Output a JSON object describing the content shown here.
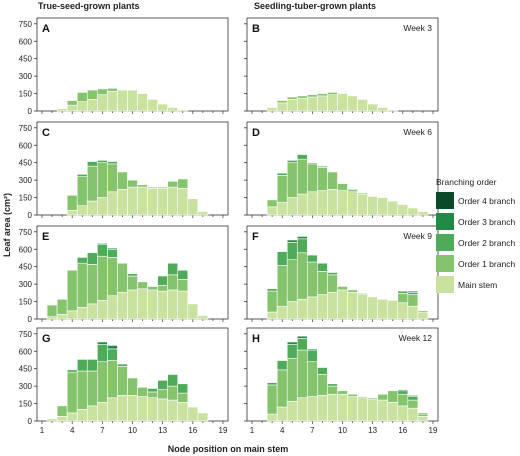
{
  "titles": {
    "left": "True-seed-grown plants",
    "right": "Seedling-tuber-grown plants"
  },
  "axes": {
    "ylabel": "Leaf area (cm²)",
    "xlabel": "Node position on main stem",
    "yticks": [
      "0",
      "150",
      "300",
      "450",
      "600",
      "750"
    ],
    "xticks": [
      "1",
      "4",
      "7",
      "10",
      "13",
      "16",
      "19"
    ]
  },
  "legend": {
    "title": "Branching order",
    "items": [
      {
        "label": "Order 4 branch",
        "color": "#0b4a28"
      },
      {
        "label": "Order 3 branch",
        "color": "#218a47"
      },
      {
        "label": "Order 2 branch",
        "color": "#4fab5a"
      },
      {
        "label": "Order 1 branch",
        "color": "#85c46d"
      },
      {
        "label": "Main stem",
        "color": "#c9e2a0"
      }
    ]
  },
  "chart_data": {
    "type": "bar",
    "stacked": true,
    "ylim": [
      0,
      800
    ],
    "xlim": [
      0.5,
      19.5
    ],
    "x": [
      1,
      2,
      3,
      4,
      5,
      6,
      7,
      8,
      9,
      10,
      11,
      12,
      13,
      14,
      15,
      16,
      17,
      18,
      19
    ],
    "series_names": [
      "Main stem",
      "Order 1 branch",
      "Order 2 branch",
      "Order 3 branch",
      "Order 4 branch"
    ],
    "panels": [
      {
        "label": "A",
        "week": "",
        "main": [
          0,
          0,
          20,
          50,
          80,
          100,
          140,
          170,
          180,
          180,
          150,
          100,
          60,
          30,
          10,
          0,
          0,
          0,
          0
        ],
        "o1": [
          0,
          0,
          0,
          40,
          80,
          80,
          50,
          25,
          0,
          0,
          0,
          0,
          0,
          0,
          0,
          0,
          0,
          0,
          0
        ],
        "o2": [
          0,
          0,
          0,
          0,
          0,
          0,
          0,
          0,
          0,
          0,
          0,
          0,
          0,
          0,
          0,
          0,
          0,
          0,
          0
        ],
        "o3": [
          0,
          0,
          0,
          0,
          0,
          0,
          0,
          0,
          0,
          0,
          0,
          0,
          0,
          0,
          0,
          0,
          0,
          0,
          0
        ],
        "o4": [
          0,
          0,
          0,
          0,
          0,
          0,
          0,
          0,
          0,
          0,
          0,
          0,
          0,
          0,
          0,
          0,
          0,
          0,
          0
        ]
      },
      {
        "label": "B",
        "week": "Week 3",
        "main": [
          0,
          0,
          30,
          70,
          100,
          110,
          120,
          130,
          140,
          150,
          130,
          100,
          60,
          30,
          10,
          0,
          0,
          0,
          0
        ],
        "o1": [
          0,
          0,
          0,
          20,
          20,
          20,
          20,
          20,
          20,
          0,
          0,
          0,
          0,
          0,
          0,
          0,
          0,
          0,
          0
        ],
        "o2": [
          0,
          0,
          0,
          0,
          0,
          0,
          0,
          0,
          0,
          0,
          0,
          0,
          0,
          0,
          0,
          0,
          0,
          0,
          0
        ],
        "o3": [
          0,
          0,
          0,
          0,
          0,
          0,
          0,
          0,
          0,
          0,
          0,
          0,
          0,
          0,
          0,
          0,
          0,
          0,
          0
        ],
        "o4": [
          0,
          0,
          0,
          0,
          0,
          0,
          0,
          0,
          0,
          0,
          0,
          0,
          0,
          0,
          0,
          0,
          0,
          0,
          0
        ]
      },
      {
        "label": "C",
        "week": "",
        "main": [
          0,
          0,
          0,
          40,
          80,
          120,
          150,
          200,
          220,
          240,
          240,
          230,
          230,
          240,
          230,
          140,
          30,
          0,
          0
        ],
        "o1": [
          0,
          0,
          0,
          130,
          250,
          300,
          300,
          240,
          150,
          60,
          20,
          10,
          10,
          50,
          80,
          0,
          0,
          0,
          0
        ],
        "o2": [
          0,
          0,
          0,
          0,
          20,
          40,
          20,
          20,
          0,
          0,
          0,
          0,
          0,
          0,
          0,
          0,
          0,
          0,
          0
        ],
        "o3": [
          0,
          0,
          0,
          0,
          0,
          0,
          0,
          0,
          0,
          0,
          0,
          0,
          0,
          0,
          0,
          0,
          0,
          0,
          0
        ],
        "o4": [
          0,
          0,
          0,
          0,
          0,
          0,
          0,
          0,
          0,
          0,
          0,
          0,
          0,
          0,
          0,
          0,
          0,
          0,
          0
        ]
      },
      {
        "label": "D",
        "week": "Week 6",
        "main": [
          0,
          0,
          70,
          110,
          150,
          180,
          200,
          210,
          220,
          210,
          200,
          180,
          160,
          150,
          120,
          90,
          60,
          30,
          0
        ],
        "o1": [
          0,
          0,
          60,
          230,
          300,
          300,
          240,
          200,
          150,
          60,
          20,
          10,
          0,
          0,
          0,
          0,
          0,
          0,
          0
        ],
        "o2": [
          0,
          0,
          0,
          20,
          20,
          40,
          10,
          10,
          0,
          0,
          0,
          0,
          0,
          0,
          0,
          0,
          0,
          0,
          0
        ],
        "o3": [
          0,
          0,
          0,
          0,
          0,
          0,
          0,
          0,
          0,
          0,
          0,
          0,
          0,
          0,
          0,
          0,
          0,
          0,
          0
        ],
        "o4": [
          0,
          0,
          0,
          0,
          0,
          0,
          0,
          0,
          0,
          0,
          0,
          0,
          0,
          0,
          0,
          0,
          0,
          0,
          0
        ]
      },
      {
        "label": "E",
        "week": "",
        "main": [
          0,
          20,
          40,
          70,
          100,
          130,
          160,
          200,
          230,
          250,
          260,
          250,
          240,
          250,
          240,
          130,
          30,
          0,
          0
        ],
        "o1": [
          0,
          100,
          130,
          350,
          380,
          340,
          380,
          330,
          250,
          120,
          60,
          30,
          50,
          130,
          100,
          0,
          0,
          0,
          0
        ],
        "o2": [
          0,
          0,
          0,
          0,
          50,
          100,
          100,
          70,
          0,
          20,
          0,
          0,
          80,
          100,
          80,
          0,
          0,
          0,
          0
        ],
        "o3": [
          0,
          0,
          0,
          0,
          0,
          0,
          10,
          10,
          0,
          0,
          0,
          0,
          0,
          0,
          0,
          0,
          0,
          0,
          0
        ],
        "o4": [
          0,
          0,
          0,
          0,
          0,
          0,
          0,
          0,
          0,
          0,
          0,
          0,
          0,
          0,
          0,
          0,
          0,
          0,
          0
        ]
      },
      {
        "label": "F",
        "week": "Week 9",
        "main": [
          0,
          0,
          60,
          110,
          150,
          170,
          190,
          210,
          230,
          250,
          230,
          210,
          190,
          170,
          160,
          140,
          110,
          60,
          0
        ],
        "o1": [
          0,
          0,
          180,
          350,
          360,
          400,
          300,
          200,
          150,
          30,
          20,
          10,
          0,
          0,
          0,
          80,
          100,
          0,
          0
        ],
        "o2": [
          0,
          0,
          20,
          120,
          150,
          120,
          60,
          70,
          20,
          0,
          0,
          0,
          0,
          0,
          0,
          20,
          20,
          10,
          0
        ],
        "o3": [
          0,
          0,
          0,
          0,
          20,
          20,
          0,
          0,
          0,
          0,
          0,
          0,
          0,
          0,
          0,
          0,
          10,
          0,
          0
        ],
        "o4": [
          0,
          0,
          0,
          0,
          0,
          0,
          0,
          0,
          0,
          0,
          0,
          0,
          0,
          0,
          0,
          0,
          0,
          0,
          0
        ]
      },
      {
        "label": "G",
        "week": "",
        "main": [
          0,
          20,
          40,
          70,
          100,
          130,
          160,
          200,
          220,
          220,
          210,
          200,
          190,
          180,
          160,
          120,
          70,
          0,
          0
        ],
        "o1": [
          0,
          0,
          90,
          350,
          330,
          300,
          350,
          320,
          250,
          150,
          80,
          50,
          80,
          120,
          80,
          0,
          0,
          0,
          0
        ],
        "o2": [
          0,
          0,
          0,
          20,
          100,
          100,
          150,
          100,
          20,
          0,
          0,
          30,
          80,
          100,
          80,
          0,
          0,
          0,
          0
        ],
        "o3": [
          0,
          0,
          0,
          0,
          0,
          0,
          20,
          30,
          0,
          0,
          0,
          0,
          0,
          0,
          0,
          0,
          0,
          0,
          0
        ],
        "o4": [
          0,
          0,
          0,
          0,
          0,
          0,
          0,
          0,
          0,
          0,
          0,
          0,
          0,
          0,
          0,
          0,
          0,
          0,
          0
        ]
      },
      {
        "label": "H",
        "week": "Week 12",
        "main": [
          0,
          0,
          60,
          120,
          170,
          200,
          210,
          220,
          230,
          230,
          210,
          200,
          190,
          180,
          160,
          130,
          110,
          40,
          0
        ],
        "o1": [
          0,
          0,
          250,
          320,
          370,
          410,
          300,
          180,
          70,
          30,
          20,
          10,
          10,
          50,
          100,
          100,
          70,
          20,
          0
        ],
        "o2": [
          0,
          0,
          20,
          80,
          120,
          100,
          100,
          60,
          20,
          0,
          0,
          0,
          0,
          0,
          0,
          30,
          30,
          10,
          0
        ],
        "o3": [
          0,
          0,
          0,
          0,
          20,
          20,
          10,
          0,
          0,
          0,
          0,
          0,
          0,
          0,
          0,
          10,
          10,
          0,
          0
        ],
        "o4": [
          0,
          0,
          0,
          0,
          0,
          0,
          0,
          0,
          0,
          0,
          0,
          0,
          0,
          0,
          0,
          0,
          0,
          0,
          0
        ]
      }
    ]
  }
}
